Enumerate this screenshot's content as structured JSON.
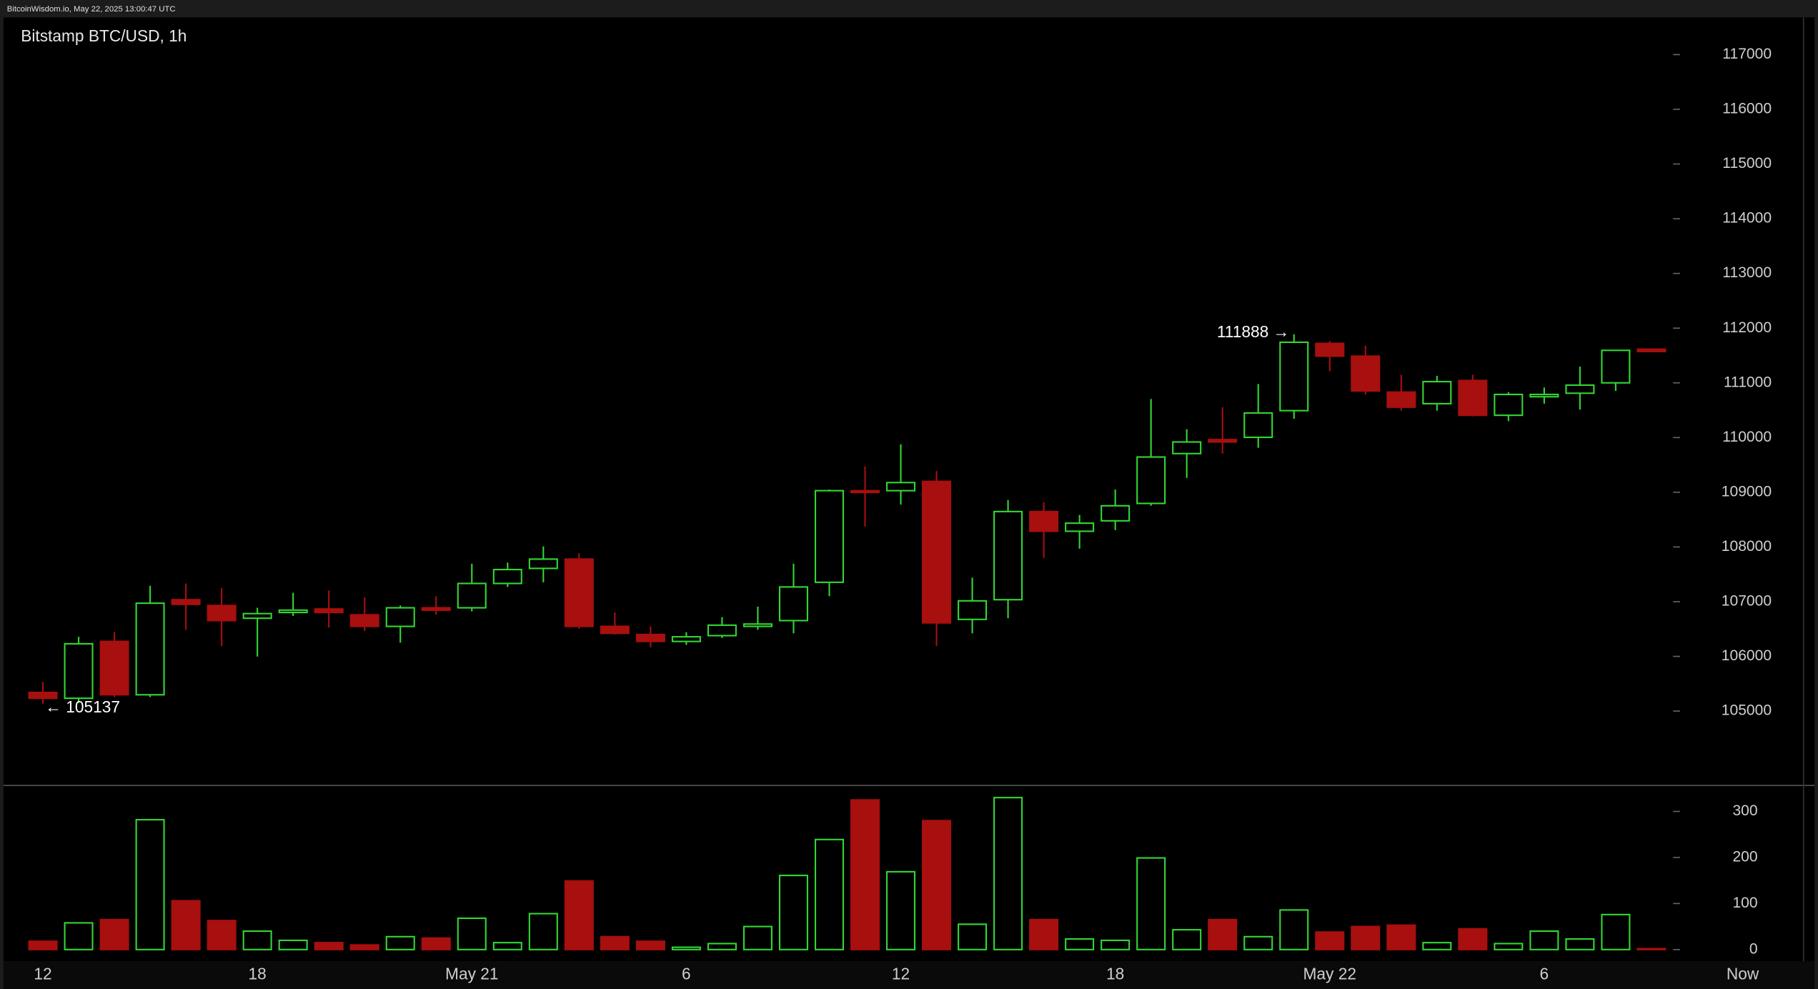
{
  "header": "BitcoinWisdom.io, May 22, 2025 13:00:47 UTC",
  "chart_data": {
    "type": "candlestick",
    "title": "Bitstamp BTC/USD, 1h",
    "up_color": "#33d633",
    "down_color": "#a80f0f",
    "categories": [
      "12",
      null,
      null,
      null,
      null,
      null,
      "18",
      null,
      null,
      null,
      null,
      null,
      "May 21",
      null,
      null,
      null,
      null,
      null,
      "6",
      null,
      null,
      null,
      null,
      null,
      "12",
      null,
      null,
      null,
      null,
      null,
      "18",
      null,
      null,
      null,
      null,
      null,
      "May 22",
      null,
      null,
      null,
      null,
      null,
      "6",
      null,
      null,
      null
    ],
    "now_label": "Now",
    "open": [
      105340,
      105234,
      106273,
      105298,
      107036,
      106930,
      106697,
      106803,
      106866,
      106760,
      106548,
      106888,
      106888,
      107333,
      107608,
      107778,
      106548,
      106400,
      106273,
      106379,
      106548,
      106654,
      107354,
      109029,
      109029,
      109198,
      106676,
      107036,
      108647,
      108287,
      108478,
      108796,
      109707,
      109962,
      110004,
      110492,
      111721,
      111488,
      110831,
      110619,
      111043,
      110407,
      110746,
      110810,
      111000,
      111615
    ],
    "high": [
      105531,
      106358,
      106442,
      107290,
      107333,
      107248,
      106888,
      107163,
      107206,
      107078,
      106930,
      107100,
      107693,
      107714,
      108011,
      107884,
      106803,
      106548,
      106442,
      106718,
      106909,
      107693,
      109050,
      109474,
      109877,
      109389,
      107439,
      108859,
      108817,
      108584,
      109050,
      110704,
      110152,
      110555,
      110979,
      111888,
      111764,
      111679,
      111149,
      111128,
      111149,
      110831,
      110916,
      111297,
      111594,
      111615
    ],
    "low": [
      105137,
      105150,
      105255,
      105255,
      106485,
      106188,
      105997,
      106739,
      106527,
      106464,
      106251,
      106760,
      106824,
      107269,
      107354,
      106506,
      106400,
      106167,
      106209,
      106336,
      106485,
      106421,
      107100,
      108372,
      108775,
      106188,
      106421,
      106697,
      107799,
      107969,
      108308,
      108753,
      109262,
      109707,
      109813,
      110343,
      111212,
      110788,
      110492,
      110492,
      110386,
      110301,
      110619,
      110513,
      110852,
      111573
    ],
    "close": [
      105234,
      106230,
      105298,
      106972,
      106951,
      106654,
      106782,
      106845,
      106803,
      106548,
      106888,
      106845,
      107333,
      107587,
      107778,
      106548,
      106421,
      106273,
      106358,
      106570,
      106591,
      107269,
      109029,
      109008,
      109177,
      106612,
      107015,
      108647,
      108287,
      108435,
      108753,
      109644,
      109919,
      109919,
      110449,
      111742,
      111488,
      110852,
      110555,
      111022,
      110407,
      110788,
      110788,
      110958,
      111594,
      111573
    ],
    "volume": [
      18,
      58,
      65,
      282,
      106,
      63,
      40,
      20,
      15,
      10,
      28,
      25,
      68,
      15,
      78,
      149,
      28,
      18,
      5,
      13,
      50,
      161,
      239,
      325,
      169,
      280,
      55,
      330,
      65,
      23,
      20,
      199,
      43,
      65,
      28,
      86,
      38,
      50,
      53,
      15,
      45,
      13,
      40,
      23,
      76,
      2
    ],
    "ylim": [
      103650,
      117680
    ],
    "yticks": [
      105000,
      106000,
      107000,
      108000,
      109000,
      110000,
      111000,
      112000,
      113000,
      114000,
      115000,
      116000,
      117000
    ],
    "y2lim": [
      0,
      350
    ],
    "y2ticks": [
      0,
      100,
      200,
      300
    ],
    "annotations": [
      {
        "text": "111888 →",
        "index": 35
      },
      {
        "text": "← 105137",
        "index": 0
      }
    ]
  }
}
